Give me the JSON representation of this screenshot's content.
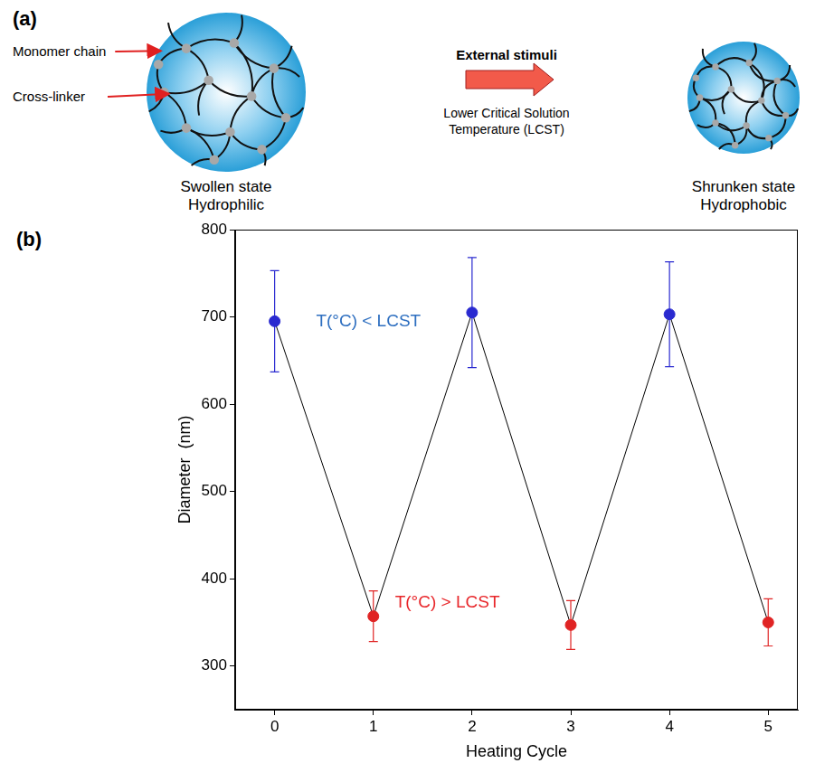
{
  "diagram": {
    "panel_label": "(a)",
    "labels": {
      "monomer_chain": "Monomer chain",
      "cross_linker": "Cross-linker"
    },
    "stimulus": {
      "title": "External stimuli",
      "subtitle": "Lower Critical Solution Temperature (LCST)"
    },
    "states": [
      {
        "title": "Swollen state",
        "property": "Hydrophilic"
      },
      {
        "title": "Shrunken state",
        "property": "Hydrophobic"
      }
    ]
  },
  "chart_data": {
    "panel_label": "(b)",
    "type": "line",
    "x_label": "Heating Cycle",
    "y_label": "Diameter  (nm)",
    "x": [
      0,
      1,
      2,
      3,
      4,
      5
    ],
    "values": [
      695,
      357,
      705,
      347,
      703,
      350
    ],
    "errors": [
      58,
      29,
      63,
      28,
      60,
      27
    ],
    "color": "#000000",
    "colors": [
      "#2a2ad0",
      "#e02424",
      "#2a2ad0",
      "#e02424",
      "#2a2ad0",
      "#e02424"
    ],
    "marker": "circle",
    "xlim": [
      -0.4,
      5.3
    ],
    "xticks": [
      0,
      1,
      2,
      3,
      4,
      5
    ],
    "ylim": [
      250,
      800
    ],
    "yticks": [
      300,
      400,
      500,
      600,
      700,
      800
    ],
    "grid": false,
    "annotations": [
      {
        "text": "T(°C) < LCST",
        "x": 0.95,
        "y": 695,
        "color": "#2e6fc0"
      },
      {
        "text": "T(°C) > LCST",
        "x": 1.75,
        "y": 372,
        "color": "#e8272b"
      }
    ]
  }
}
